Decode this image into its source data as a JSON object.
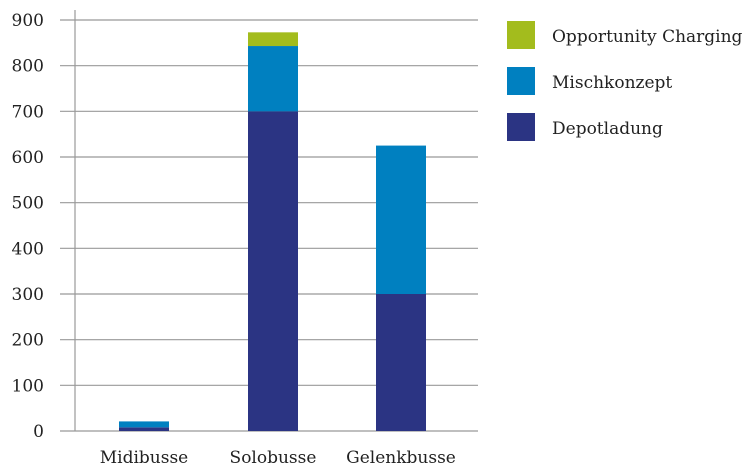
{
  "chart_data": {
    "type": "bar",
    "stacked": true,
    "categories": [
      "Midibusse",
      "Solobusse",
      "Gelenkbusse"
    ],
    "series": [
      {
        "name": "Depotladung",
        "color": "#2b3483",
        "values": [
          8,
          700,
          300
        ]
      },
      {
        "name": "Mischkonzept",
        "color": "#0080c0",
        "values": [
          13,
          143,
          325
        ]
      },
      {
        "name": "Opportunity Charging",
        "color": "#a3bc1d",
        "values": [
          0,
          30,
          0
        ]
      }
    ],
    "ylim": [
      0,
      900
    ],
    "yticks": [
      0,
      100,
      200,
      300,
      400,
      500,
      600,
      700,
      800,
      900
    ],
    "grid": true,
    "legend_position": "top-right",
    "legend_order": [
      "Opportunity Charging",
      "Mischkonzept",
      "Depotladung"
    ]
  }
}
